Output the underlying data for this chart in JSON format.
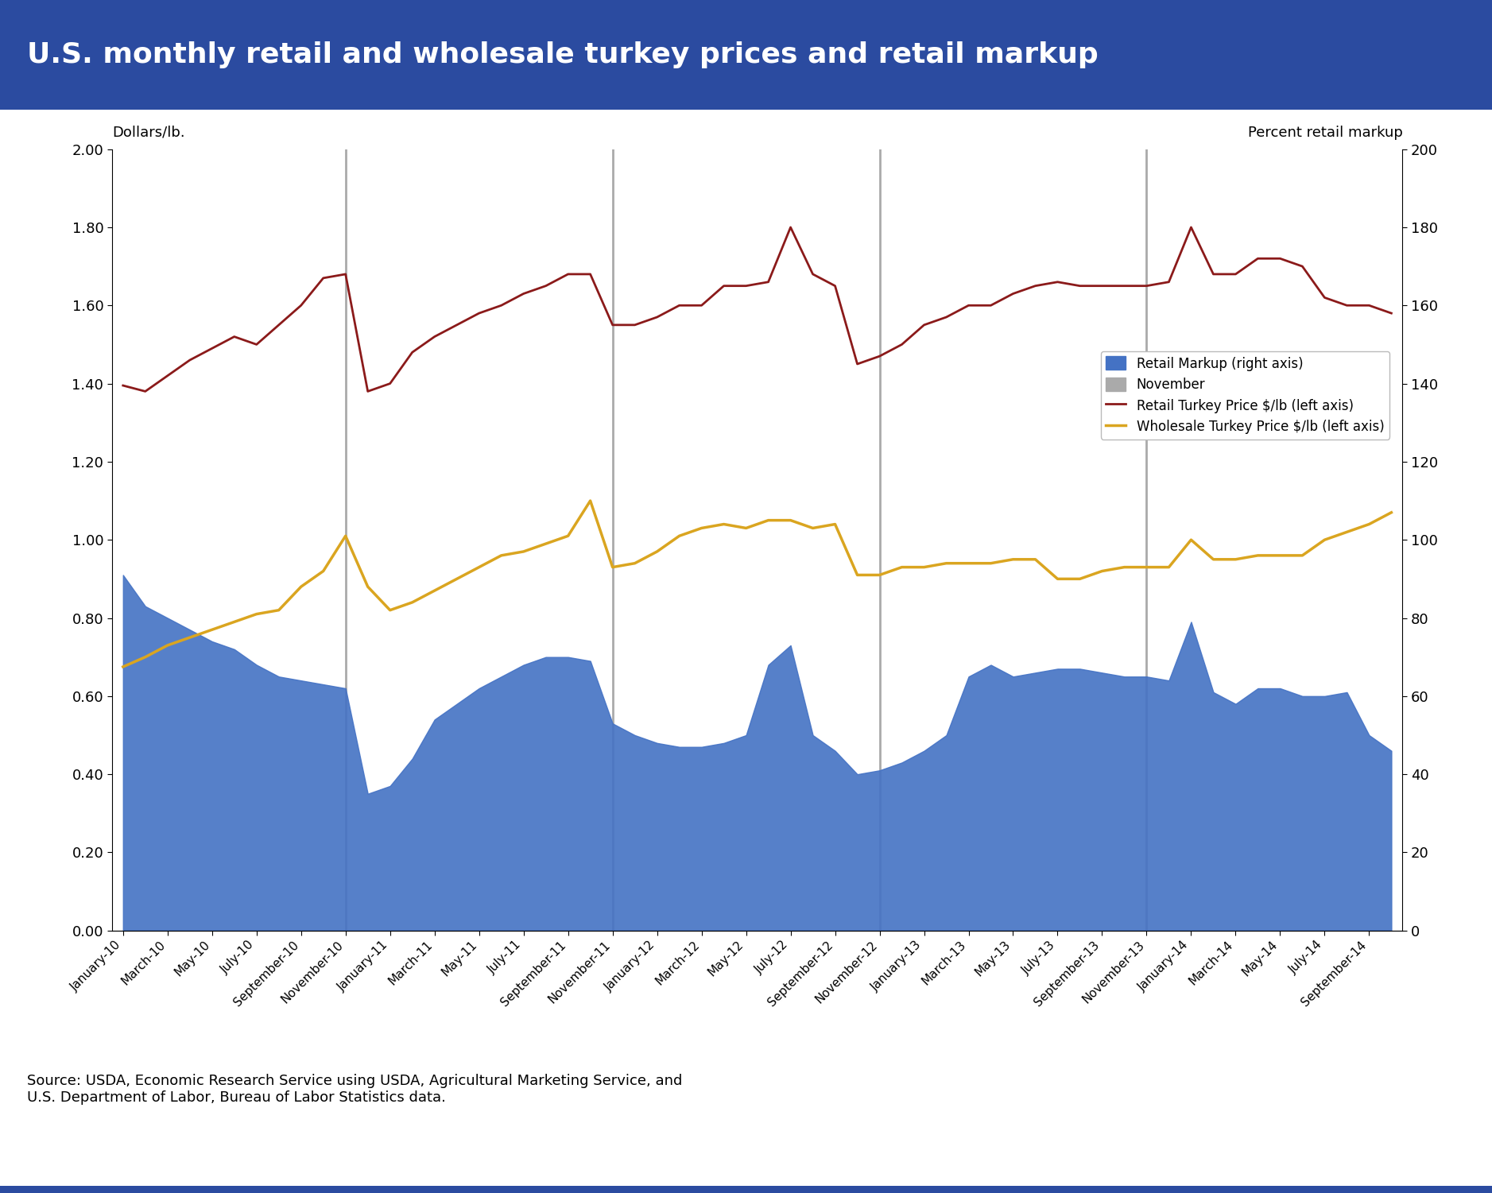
{
  "title": "U.S. monthly retail and wholesale turkey prices and retail markup",
  "title_bg_color": "#2B4BA0",
  "title_text_color": "#FFFFFF",
  "ylabel_left": "Dollars/lb.",
  "ylabel_right": "Percent retail markup",
  "source_text": "Source: USDA, Economic Research Service using USDA, Agricultural Marketing Service, and\nU.S. Department of Labor, Bureau of Labor Statistics data.",
  "ylim_left": [
    0.0,
    2.0
  ],
  "ylim_right": [
    0,
    200
  ],
  "yticks_left": [
    0.0,
    0.2,
    0.4,
    0.6,
    0.8,
    1.0,
    1.2,
    1.4,
    1.6,
    1.8,
    2.0
  ],
  "yticks_right": [
    0,
    20,
    40,
    60,
    80,
    100,
    120,
    140,
    160,
    180,
    200
  ],
  "november_lines": [
    10,
    22,
    34,
    46
  ],
  "retail_price": [
    1.395,
    1.38,
    1.42,
    1.46,
    1.49,
    1.52,
    1.5,
    1.55,
    1.6,
    1.67,
    1.68,
    1.38,
    1.4,
    1.48,
    1.52,
    1.55,
    1.58,
    1.6,
    1.63,
    1.65,
    1.68,
    1.68,
    1.55,
    1.55,
    1.57,
    1.6,
    1.6,
    1.65,
    1.65,
    1.66,
    1.8,
    1.68,
    1.65,
    1.45,
    1.47,
    1.5,
    1.55,
    1.57,
    1.6,
    1.6,
    1.63,
    1.65,
    1.66,
    1.65,
    1.65,
    1.65,
    1.65,
    1.66,
    1.8,
    1.68,
    1.68,
    1.72,
    1.72,
    1.7,
    1.62,
    1.6,
    1.6,
    1.58
  ],
  "wholesale_price": [
    0.675,
    0.7,
    0.73,
    0.75,
    0.77,
    0.79,
    0.81,
    0.82,
    0.88,
    0.92,
    1.01,
    0.88,
    0.82,
    0.84,
    0.87,
    0.9,
    0.93,
    0.96,
    0.97,
    0.99,
    1.01,
    1.1,
    0.93,
    0.94,
    0.97,
    1.01,
    1.03,
    1.04,
    1.03,
    1.05,
    1.05,
    1.03,
    1.04,
    0.91,
    0.91,
    0.93,
    0.93,
    0.94,
    0.94,
    0.94,
    0.95,
    0.95,
    0.9,
    0.9,
    0.92,
    0.93,
    0.93,
    0.93,
    1.0,
    0.95,
    0.95,
    0.96,
    0.96,
    0.96,
    1.0,
    1.02,
    1.04,
    1.07
  ],
  "retail_markup": [
    0.91,
    0.83,
    0.8,
    0.77,
    0.74,
    0.72,
    0.68,
    0.65,
    0.64,
    0.63,
    0.62,
    0.35,
    0.37,
    0.44,
    0.54,
    0.58,
    0.62,
    0.65,
    0.68,
    0.7,
    0.7,
    0.69,
    0.53,
    0.5,
    0.48,
    0.47,
    0.47,
    0.48,
    0.5,
    0.68,
    0.73,
    0.5,
    0.46,
    0.4,
    0.41,
    0.43,
    0.46,
    0.5,
    0.65,
    0.68,
    0.65,
    0.66,
    0.67,
    0.67,
    0.66,
    0.65,
    0.65,
    0.64,
    0.79,
    0.61,
    0.58,
    0.62,
    0.62,
    0.6,
    0.6,
    0.61,
    0.5,
    0.46
  ],
  "tick_labels": [
    "January-10",
    "March-10",
    "May-10",
    "July-10",
    "September-10",
    "November-10",
    "January-11",
    "March-11",
    "May-11",
    "July-11",
    "September-11",
    "November-11",
    "January-12",
    "March-12",
    "May-12",
    "July-12",
    "September-12",
    "November-12",
    "January-13",
    "March-13",
    "May-13",
    "July-13",
    "September-13",
    "November-13",
    "January-14",
    "March-14",
    "May-14",
    "July-14",
    "September-14"
  ],
  "tick_positions": [
    0,
    2,
    4,
    6,
    8,
    10,
    12,
    14,
    16,
    18,
    20,
    22,
    24,
    26,
    28,
    30,
    32,
    34,
    36,
    38,
    40,
    42,
    44,
    46,
    48,
    50,
    52,
    54,
    56
  ],
  "retail_color": "#8B1A1A",
  "wholesale_color": "#DAA520",
  "markup_color": "#4472C4",
  "november_color": "#AAAAAA",
  "background_color": "#FFFFFF",
  "border_color": "#2B4BA0",
  "outer_border_color": "#2B4BA0"
}
